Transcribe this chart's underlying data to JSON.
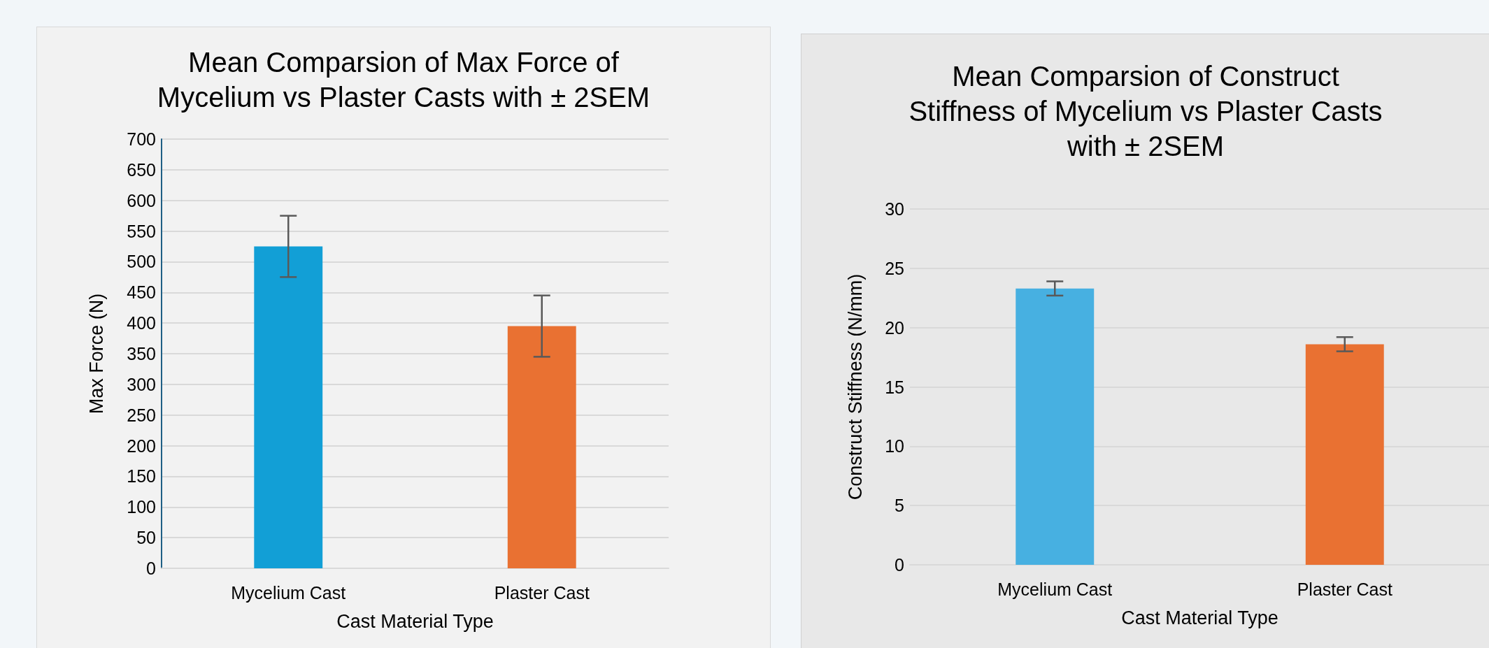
{
  "chart_data": [
    {
      "type": "bar",
      "title": "Mean Comparsion of Max Force of\nMycelium vs Plaster Casts with ± 2SEM",
      "xlabel": "Cast Material Type",
      "ylabel": "Max Force (N)",
      "categories": [
        "Mycelium Cast",
        "Plaster Cast"
      ],
      "values": [
        525,
        395
      ],
      "colors": [
        "#129fd6",
        "#e97132"
      ],
      "errors": [
        50,
        50
      ],
      "ylim": [
        0,
        700
      ],
      "yticks": [
        0,
        50,
        100,
        150,
        200,
        250,
        300,
        350,
        400,
        450,
        500,
        550,
        600,
        650,
        700
      ],
      "grid": "y"
    },
    {
      "type": "bar",
      "title": "Mean Comparsion of Construct\nStiffness of Mycelium vs Plaster Casts\nwith ± 2SEM",
      "xlabel": "Cast Material Type",
      "ylabel": "Construct Stiffness (N/mm)",
      "categories": [
        "Mycelium Cast",
        "Plaster Cast"
      ],
      "values": [
        23.3,
        18.6
      ],
      "colors": [
        "#47b0e1",
        "#e97132"
      ],
      "errors": [
        0.6,
        0.6
      ],
      "ylim": [
        0,
        30
      ],
      "yticks": [
        0,
        5,
        10,
        15,
        20,
        25,
        30
      ],
      "grid": "y"
    }
  ]
}
